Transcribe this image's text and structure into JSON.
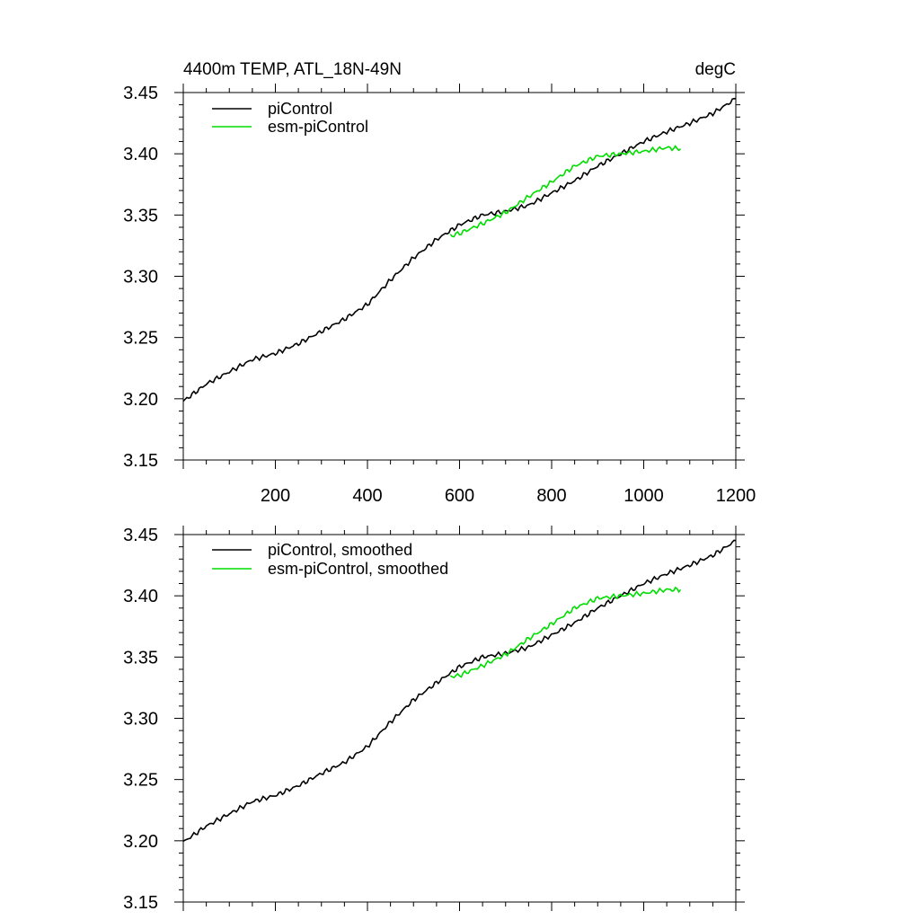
{
  "header": {
    "title": "4400m TEMP, ATL_18N-49N",
    "units": "degC"
  },
  "colors": {
    "piControl": "#000000",
    "esm_piControl": "#00dd00"
  },
  "chart_data": [
    {
      "type": "line",
      "title": "4400m TEMP, ATL_18N-49N",
      "units": "degC",
      "xlim": [
        0,
        1200
      ],
      "ylim": [
        3.15,
        3.45
      ],
      "x_tick_labels": [
        "200",
        "400",
        "600",
        "800",
        "1000",
        "1200"
      ],
      "y_tick_labels": [
        "3.15",
        "3.20",
        "3.25",
        "3.30",
        "3.35",
        "3.40",
        "3.45"
      ],
      "legend_position": "top-left",
      "series": [
        {
          "name": "piControl",
          "color": "#000000",
          "x": [
            0,
            50,
            100,
            150,
            200,
            250,
            300,
            350,
            400,
            450,
            500,
            550,
            600,
            650,
            700,
            750,
            800,
            850,
            900,
            950,
            1000,
            1050,
            1100,
            1150,
            1200
          ],
          "y": [
            3.198,
            3.212,
            3.222,
            3.232,
            3.237,
            3.245,
            3.255,
            3.265,
            3.277,
            3.297,
            3.315,
            3.33,
            3.342,
            3.35,
            3.353,
            3.358,
            3.368,
            3.378,
            3.39,
            3.4,
            3.41,
            3.418,
            3.425,
            3.433,
            3.445
          ]
        },
        {
          "name": "esm-piControl",
          "color": "#00dd00",
          "x": [
            580,
            600,
            650,
            700,
            750,
            800,
            850,
            900,
            950,
            1000,
            1050,
            1080
          ],
          "y": [
            3.333,
            3.335,
            3.343,
            3.352,
            3.365,
            3.377,
            3.39,
            3.398,
            3.4,
            3.402,
            3.405,
            3.404
          ]
        }
      ]
    },
    {
      "type": "line",
      "xlim": [
        0,
        1200
      ],
      "ylim": [
        3.15,
        3.45
      ],
      "y_tick_labels": [
        "3.15",
        "3.20",
        "3.25",
        "3.30",
        "3.35",
        "3.40",
        "3.45"
      ],
      "legend_position": "top-left",
      "series": [
        {
          "name": "piControl, smoothed",
          "color": "#000000",
          "x": [
            0,
            50,
            100,
            150,
            200,
            250,
            300,
            350,
            400,
            450,
            500,
            550,
            600,
            650,
            700,
            750,
            800,
            850,
            900,
            950,
            1000,
            1050,
            1100,
            1150,
            1200
          ],
          "y": [
            3.199,
            3.212,
            3.222,
            3.232,
            3.237,
            3.245,
            3.255,
            3.264,
            3.277,
            3.297,
            3.315,
            3.329,
            3.342,
            3.35,
            3.353,
            3.358,
            3.368,
            3.378,
            3.39,
            3.4,
            3.41,
            3.418,
            3.425,
            3.433,
            3.445
          ]
        },
        {
          "name": "esm-piControl, smoothed",
          "color": "#00dd00",
          "x": [
            580,
            600,
            650,
            700,
            750,
            800,
            850,
            900,
            950,
            1000,
            1050,
            1080
          ],
          "y": [
            3.334,
            3.335,
            3.343,
            3.352,
            3.365,
            3.377,
            3.39,
            3.398,
            3.4,
            3.402,
            3.405,
            3.405
          ]
        }
      ]
    }
  ]
}
